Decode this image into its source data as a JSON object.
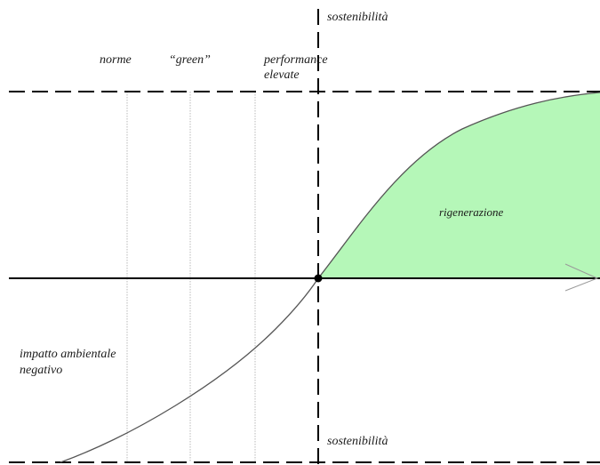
{
  "labels": {
    "top_axis": "sostenibilità",
    "bottom_axis": "sostenibilità",
    "norme": "norme",
    "green": "“green”",
    "performance_line1": "performance",
    "performance_line2": "elevate",
    "rigenerazione": "rigenerazione",
    "impatto_line1": "impatto ambientale",
    "impatto_line2": "negativo"
  },
  "colors": {
    "region_fill": "#b5f7b8",
    "line": "#000000",
    "curve": "#555555",
    "guide": "#b8b8b8"
  }
}
